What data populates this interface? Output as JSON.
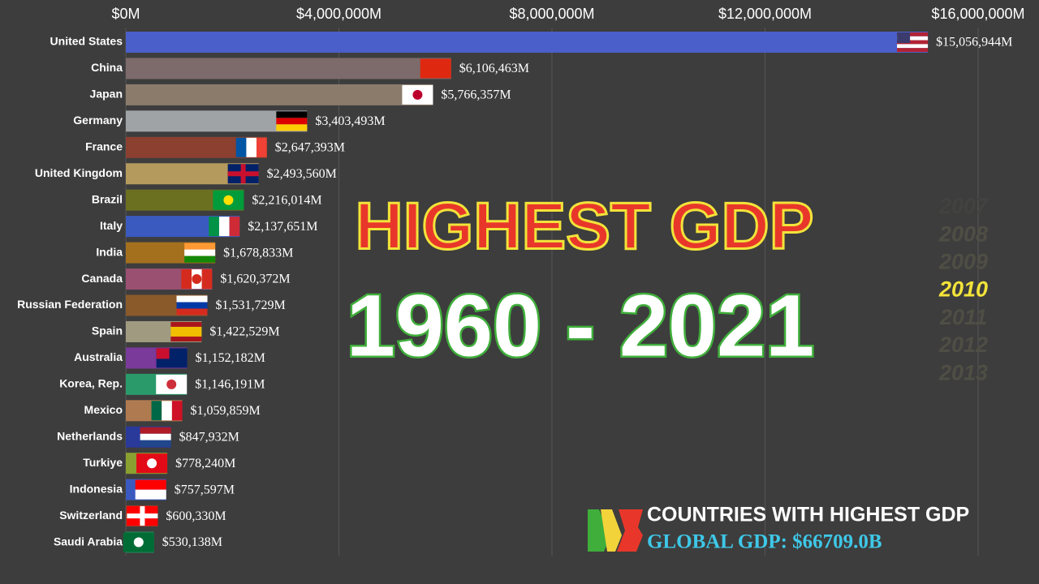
{
  "chart_data": {
    "type": "bar",
    "orientation": "horizontal",
    "title": "HIGHEST GDP",
    "subtitle": "1960 - 2021",
    "categories": [
      "United States",
      "China",
      "Japan",
      "Germany",
      "France",
      "United Kingdom",
      "Brazil",
      "Italy",
      "India",
      "Canada",
      "Russian Federation",
      "Spain",
      "Australia",
      "Korea, Rep.",
      "Mexico",
      "Netherlands",
      "Turkiye",
      "Indonesia",
      "Switzerland",
      "Saudi Arabia"
    ],
    "values": [
      15056944,
      6106463,
      5766357,
      3403493,
      2647393,
      2493560,
      2216014,
      2137651,
      1678833,
      1620372,
      1531729,
      1422529,
      1152182,
      1146191,
      1059859,
      847932,
      778240,
      757597,
      600330,
      530138
    ],
    "value_labels": [
      "$15,056,944M",
      "$6,106,463M",
      "$5,766,357M",
      "$3,403,493M",
      "$2,647,393M",
      "$2,493,560M",
      "$2,216,014M",
      "$2,137,651M",
      "$1,678,833M",
      "$1,620,372M",
      "$1,531,729M",
      "$1,422,529M",
      "$1,152,182M",
      "$1,146,191M",
      "$1,059,859M",
      "$847,932M",
      "$778,240M",
      "$757,597M",
      "$600,330M",
      "$530,138M"
    ],
    "colors": [
      "#4a5fc9",
      "#7d6a6a",
      "#8b7b6b",
      "#a0a3a6",
      "#8b4030",
      "#b59a5e",
      "#6b7020",
      "#3a5ac0",
      "#a5701e",
      "#9a5070",
      "#8b5a2b",
      "#a09a80",
      "#7a3a9a",
      "#2a9a6a",
      "#b07a50",
      "#2a3a9a",
      "#8aa030",
      "#3a5ac0",
      "#a03a2a",
      "#2a8a5a"
    ],
    "xlim": [
      0,
      16000000
    ],
    "xticks": [
      {
        "value": 0,
        "label": "$0M"
      },
      {
        "value": 4000000,
        "label": "$4,000,000M"
      },
      {
        "value": 8000000,
        "label": "$8,000,000M"
      },
      {
        "value": 12000000,
        "label": "$12,000,000M"
      },
      {
        "value": 16000000,
        "label": "$16,000,000M"
      }
    ],
    "grid": true,
    "years": [
      "2007",
      "2008",
      "2009",
      "2010",
      "2011",
      "2012",
      "2013"
    ],
    "logo_title": "COUNTRIES WITH HIGHEST GDP",
    "global_gdp": "GLOBAL GDP: $66709.0B"
  }
}
